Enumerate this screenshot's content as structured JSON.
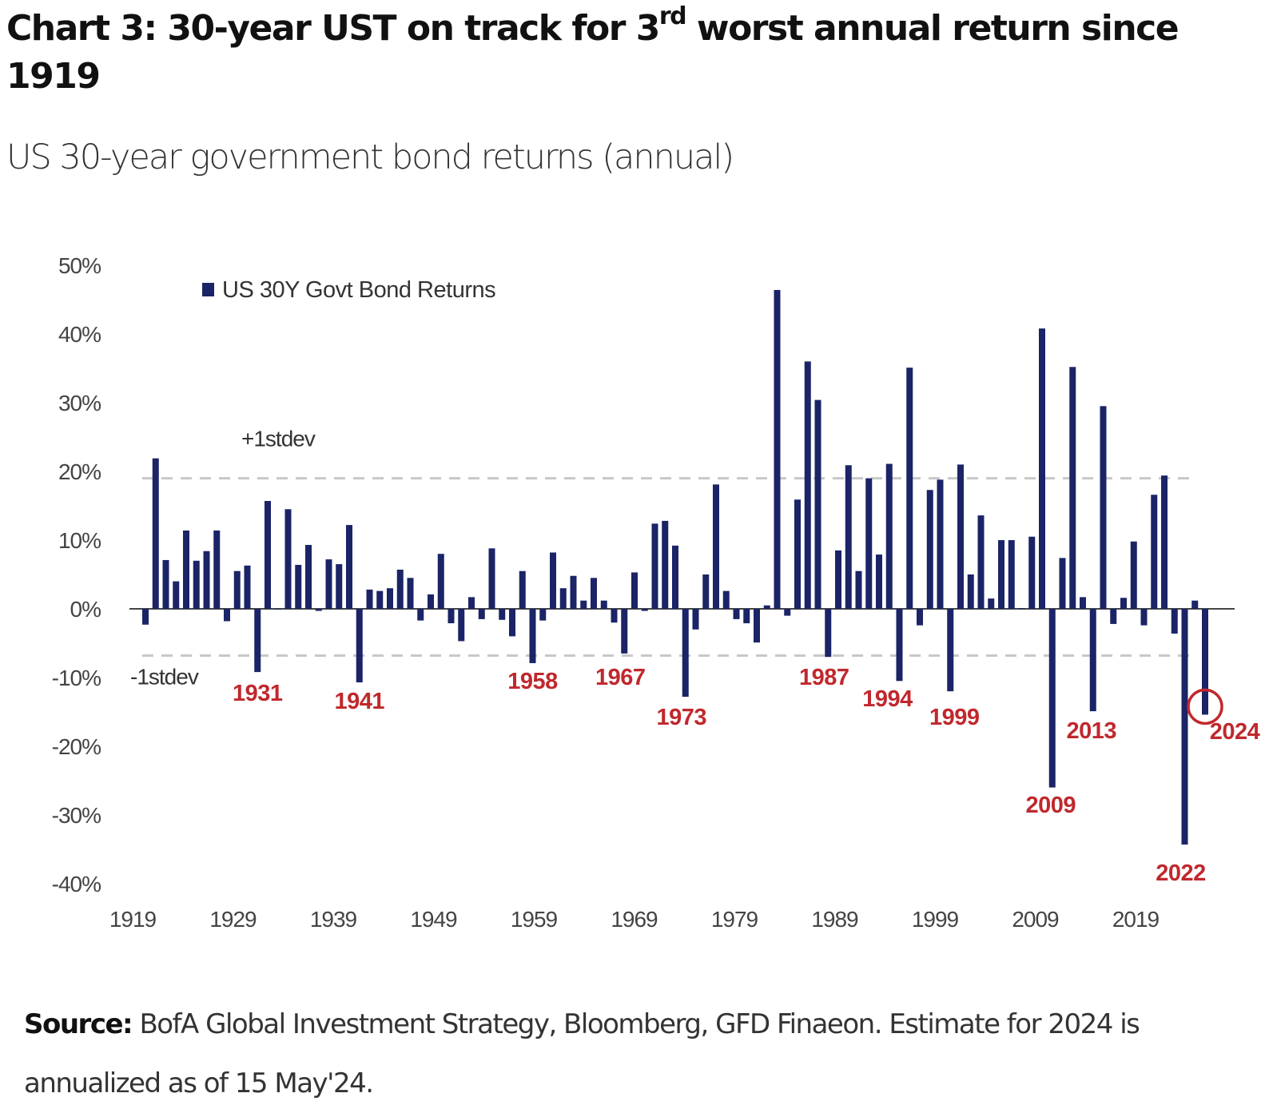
{
  "header": {
    "title_main": "Chart 3: 30-year UST on track for 3",
    "title_sup": "rd",
    "title_rest": " worst annual return since 1919",
    "subtitle": "US 30-year government bond returns (annual)"
  },
  "footer": {
    "source_label": "Source:",
    "source_text": " BofA Global Investment Strategy, Bloomberg, GFD Finaeon. Estimate for 2024 is annualized as of 15 May'24."
  },
  "colors": {
    "bar": "#1a2466",
    "annotation": "#c0282d",
    "stdev_line": "#c8c8c8",
    "axis": "#444444"
  },
  "chart_data": {
    "type": "bar",
    "title": "Chart 3: 30-year UST on track for 3rd worst annual return since 1919",
    "subtitle": "US 30-year government bond returns (annual)",
    "xlabel": "",
    "ylabel": "",
    "ylim": [
      -40,
      50
    ],
    "yticks": [
      50,
      40,
      30,
      20,
      10,
      0,
      -10,
      -20,
      -30,
      -40
    ],
    "ytick_labels": [
      "50%",
      "40%",
      "30%",
      "20%",
      "10%",
      "0%",
      "-10%",
      "-20%",
      "-30%",
      "-40%"
    ],
    "xtick_labels": [
      "1919",
      "1929",
      "1939",
      "1949",
      "1959",
      "1969",
      "1979",
      "1989",
      "1999",
      "2009",
      "2019"
    ],
    "grid": false,
    "legend": {
      "position": "top-left",
      "entries": [
        "US 30Y Govt Bond Returns"
      ]
    },
    "reference_lines": [
      {
        "label": "+1stdev",
        "value": 19.0,
        "style": "dashed"
      },
      {
        "label": "-1stdev",
        "value": -6.8,
        "style": "dashed"
      }
    ],
    "annotations": [
      {
        "year": 1931,
        "label": "1931"
      },
      {
        "year": 1941,
        "label": "1941"
      },
      {
        "year": 1958,
        "label": "1958"
      },
      {
        "year": 1967,
        "label": "1967"
      },
      {
        "year": 1973,
        "label": "1973"
      },
      {
        "year": 1987,
        "label": "1987"
      },
      {
        "year": 1994,
        "label": "1994"
      },
      {
        "year": 1999,
        "label": "1999"
      },
      {
        "year": 2009,
        "label": "2009"
      },
      {
        "year": 2013,
        "label": "2013"
      },
      {
        "year": 2022,
        "label": "2022"
      },
      {
        "year": 2024,
        "label": "2024",
        "circled": true
      }
    ],
    "series": [
      {
        "name": "US 30Y Govt Bond Returns",
        "start_year": 1920,
        "values": [
          -2.3,
          21.9,
          7.1,
          4.0,
          11.4,
          7.0,
          8.4,
          11.4,
          -1.8,
          5.5,
          6.3,
          -9.2,
          15.7,
          0.0,
          14.5,
          6.4,
          9.3,
          -0.3,
          7.2,
          6.5,
          12.2,
          -10.7,
          2.8,
          2.6,
          3.0,
          5.7,
          4.5,
          -1.7,
          2.1,
          8.0,
          -2.1,
          -4.7,
          1.7,
          -1.5,
          8.8,
          -1.6,
          -4.0,
          5.5,
          -7.9,
          -1.7,
          8.2,
          3.0,
          4.8,
          1.2,
          4.5,
          1.2,
          -2.0,
          -6.5,
          5.3,
          -0.3,
          12.4,
          12.8,
          9.2,
          -12.8,
          -3.0,
          5.0,
          18.1,
          2.6,
          -1.5,
          -2.1,
          -4.9,
          0.5,
          46.4,
          -1.0,
          15.9,
          36.0,
          30.4,
          -7.0,
          8.5,
          20.9,
          5.5,
          19.0,
          7.9,
          21.1,
          -10.5,
          35.1,
          -2.4,
          17.3,
          18.8,
          -12.0,
          21.0,
          5.0,
          13.6,
          1.5,
          10.0,
          10.0,
          0.1,
          10.5,
          40.8,
          -26.0,
          7.4,
          35.2,
          1.7,
          -14.9,
          29.5,
          -2.2,
          1.6,
          9.8,
          -2.4,
          16.6,
          19.4,
          -3.6,
          -34.3,
          1.2,
          -15.4
        ]
      }
    ]
  }
}
